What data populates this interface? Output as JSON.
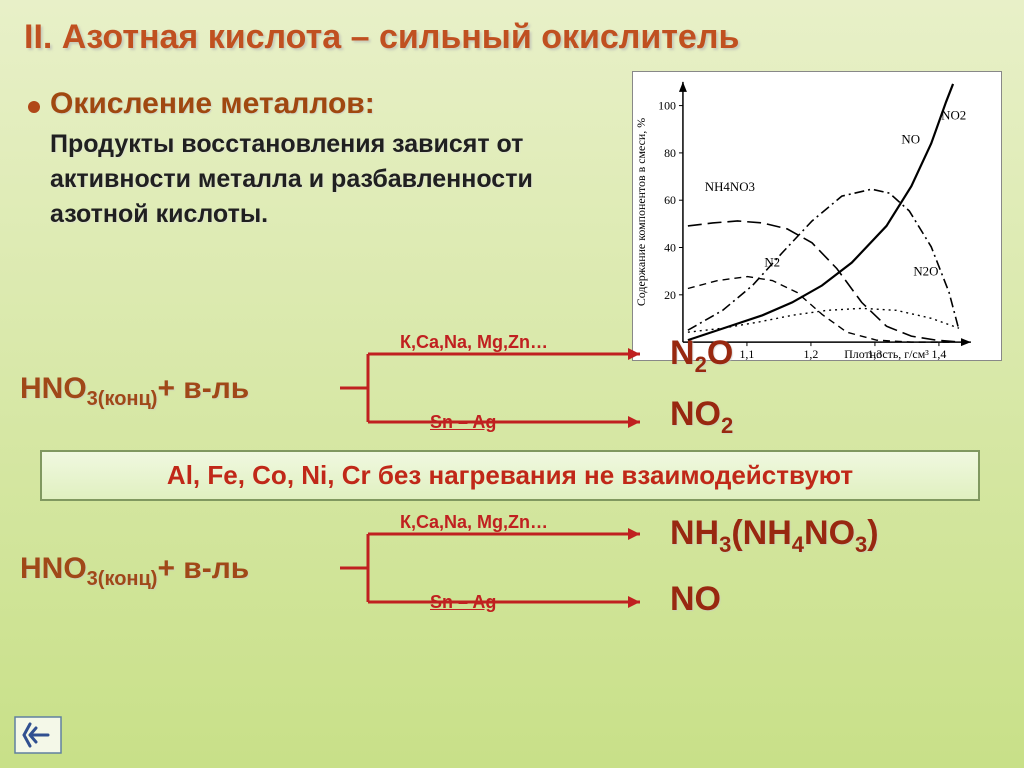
{
  "title": "II. Азотная кислота – сильный окислитель",
  "bullet_heading": "Окисление металлов:",
  "body": "Продукты восстановления зависят от активности металла и разбавленности азотной кислоты.",
  "chart": {
    "xlabel": "Плотность, г/см³",
    "ylabel": "Содержание компонентов в смеси, %",
    "xlim": [
      1.0,
      1.45
    ],
    "ylim": [
      0,
      110
    ],
    "xticks": [
      "1,1",
      "1,2",
      "1,3",
      "1,4"
    ],
    "yticks": [
      20,
      40,
      60,
      80,
      100
    ],
    "background": "#ffffff",
    "axis_color": "#000000",
    "curves": [
      {
        "name": "NO2",
        "label": "NO₂",
        "label_pos": [
          310,
          48
        ],
        "style": "solid",
        "width": 2.2,
        "points": [
          [
            55,
            270
          ],
          [
            100,
            255
          ],
          [
            130,
            245
          ],
          [
            160,
            232
          ],
          [
            190,
            215
          ],
          [
            220,
            192
          ],
          [
            255,
            155
          ],
          [
            280,
            115
          ],
          [
            300,
            72
          ],
          [
            315,
            30
          ],
          [
            322,
            12
          ]
        ]
      },
      {
        "name": "NO",
        "label": "NO",
        "label_pos": [
          270,
          72
        ],
        "style": "dashdot",
        "width": 1.6,
        "points": [
          [
            55,
            260
          ],
          [
            90,
            240
          ],
          [
            120,
            215
          ],
          [
            150,
            182
          ],
          [
            180,
            150
          ],
          [
            210,
            125
          ],
          [
            240,
            118
          ],
          [
            258,
            122
          ],
          [
            278,
            140
          ],
          [
            300,
            176
          ],
          [
            318,
            222
          ],
          [
            328,
            260
          ]
        ]
      },
      {
        "name": "NH4NO3",
        "label": "NH₄NO₃",
        "label_pos": [
          72,
          120
        ],
        "style": "longdash",
        "width": 1.6,
        "points": [
          [
            55,
            155
          ],
          [
            80,
            152
          ],
          [
            105,
            150
          ],
          [
            130,
            152
          ],
          [
            155,
            158
          ],
          [
            180,
            172
          ],
          [
            205,
            198
          ],
          [
            230,
            232
          ],
          [
            255,
            256
          ],
          [
            280,
            266
          ],
          [
            305,
            270
          ],
          [
            330,
            272
          ]
        ]
      },
      {
        "name": "N2",
        "label": "N₂",
        "label_pos": [
          132,
          196
        ],
        "style": "dash",
        "width": 1.4,
        "points": [
          [
            55,
            218
          ],
          [
            85,
            210
          ],
          [
            115,
            206
          ],
          [
            140,
            210
          ],
          [
            165,
            222
          ],
          [
            190,
            244
          ],
          [
            215,
            262
          ],
          [
            245,
            270
          ],
          [
            280,
            272
          ],
          [
            320,
            272
          ]
        ]
      },
      {
        "name": "N2O",
        "label": "N₂O",
        "label_pos": [
          282,
          205
        ],
        "style": "dot",
        "width": 1.4,
        "points": [
          [
            55,
            262
          ],
          [
            90,
            258
          ],
          [
            125,
            252
          ],
          [
            160,
            245
          ],
          [
            195,
            240
          ],
          [
            230,
            238
          ],
          [
            265,
            240
          ],
          [
            300,
            248
          ],
          [
            328,
            258
          ]
        ]
      }
    ]
  },
  "reactions": [
    {
      "reactant_html": "HNO<sub>3(конц)</sub>+ в-ль",
      "top_cond": "К,Ca,Na, Mg,Zn…",
      "bot_cond": "Sn – Ag",
      "product_top": "N<sub>2</sub>O",
      "product_bot": "NO<sub>2</sub>"
    },
    {
      "reactant_html": "HNO<sub>3(конц)</sub>+ в-ль",
      "top_cond": "К,Ca,Na, Mg,Zn…",
      "bot_cond": "Sn – Ag",
      "product_top": "NH<sub>3</sub>(NH<sub>4</sub>NO<sub>3</sub>)",
      "product_bot": "NO"
    }
  ],
  "note": "Al, Fe, Co, Ni, Cr без нагревания не взаимодействуют",
  "arrow_color": "#c02020"
}
